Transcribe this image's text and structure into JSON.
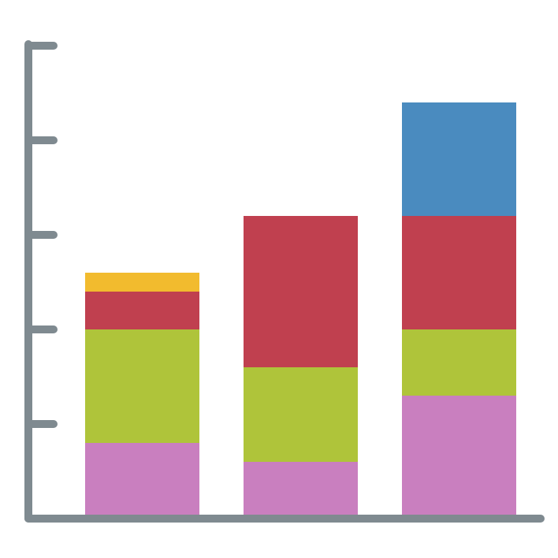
{
  "chart_data": {
    "type": "stacked-bar",
    "categories": [
      null,
      null,
      null
    ],
    "series": [
      {
        "color": "#c97fbf",
        "values": [
          0.8,
          0.6,
          1.3
        ]
      },
      {
        "color": "#afc43a",
        "values": [
          1.2,
          1.0,
          0.7
        ]
      },
      {
        "color": "#c0404f",
        "values": [
          0.4,
          1.6,
          1.2
        ]
      },
      {
        "color": "#f2bb2e",
        "values": [
          0.2,
          null,
          null
        ]
      },
      {
        "color": "#4a8bbf",
        "values": [
          null,
          null,
          1.2
        ]
      }
    ],
    "ylim": [
      0,
      5
    ],
    "yticks": [
      1,
      2,
      3,
      4,
      5
    ],
    "axis_color": "#7f8a90"
  }
}
